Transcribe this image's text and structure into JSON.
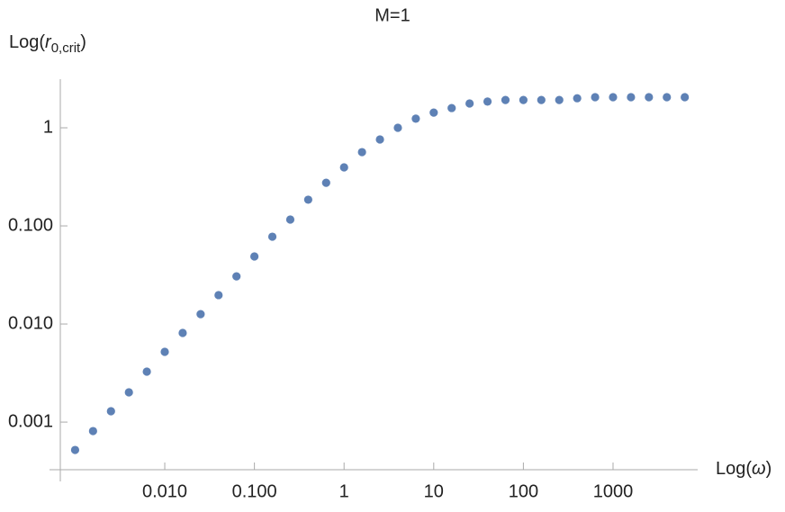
{
  "chart_data": {
    "type": "scatter",
    "title": "M=1",
    "xlabel": [
      "Log(",
      "ω",
      ")"
    ],
    "ylabel": [
      "Log(",
      "r",
      "0,crit",
      ")"
    ],
    "log_x": true,
    "log_y": true,
    "color": "#5e81b5",
    "x": [
      0.001,
      0.001585,
      0.002512,
      0.003981,
      0.00631,
      0.01,
      0.01585,
      0.02512,
      0.03981,
      0.0631,
      0.1,
      0.1585,
      0.2512,
      0.3981,
      0.631,
      1,
      1.585,
      2.512,
      3.981,
      6.31,
      10,
      15.85,
      25.12,
      39.81,
      63.1,
      100,
      158.5,
      251.2,
      398.1,
      631,
      1000,
      1585,
      2512,
      3981,
      6310
    ],
    "values": [
      0.00052,
      0.00081,
      0.00129,
      0.00201,
      0.00327,
      0.0052,
      0.0081,
      0.0126,
      0.0197,
      0.0306,
      0.0488,
      0.0776,
      0.116,
      0.185,
      0.275,
      0.395,
      0.565,
      0.76,
      1.0,
      1.24,
      1.43,
      1.59,
      1.77,
      1.85,
      1.92,
      1.92,
      1.92,
      1.92,
      2.0,
      2.05,
      2.05,
      2.05,
      2.05,
      2.05,
      2.05
    ],
    "xlim": [
      0.000684,
      8790
    ],
    "ylim": [
      0.000327,
      3.13
    ],
    "xticks": [
      {
        "value": 0.01,
        "label": "0.010"
      },
      {
        "value": 0.1,
        "label": "0.100"
      },
      1,
      10,
      100,
      1000
    ],
    "yticks": [
      {
        "value": 0.001,
        "label": "0.001"
      },
      {
        "value": 0.01,
        "label": "0.010"
      },
      {
        "value": 0.1,
        "label": "0.100"
      },
      1
    ]
  }
}
